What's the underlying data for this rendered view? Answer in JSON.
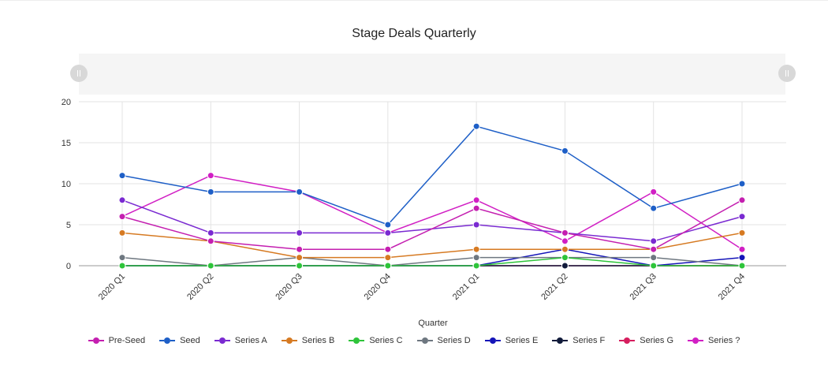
{
  "chart_data": {
    "type": "line",
    "title": "Stage Deals Quarterly",
    "xlabel": "Quarter",
    "ylabel": "",
    "ylim": [
      0,
      20
    ],
    "yticks": [
      0,
      5,
      10,
      15,
      20
    ],
    "categories": [
      "2020 Q1",
      "2020 Q2",
      "2020 Q3",
      "2020 Q4",
      "2021 Q1",
      "2021 Q2",
      "2021 Q3",
      "2021 Q4"
    ],
    "grid": true,
    "legend_position": "bottom",
    "series": [
      {
        "name": "Pre-Seed",
        "color": "#c41fb0",
        "values": [
          6,
          3,
          2,
          2,
          7,
          4,
          2,
          8
        ]
      },
      {
        "name": "Seed",
        "color": "#1e5fc7",
        "values": [
          11,
          9,
          9,
          5,
          17,
          14,
          7,
          10
        ]
      },
      {
        "name": "Series A",
        "color": "#7a2ad1",
        "values": [
          8,
          4,
          4,
          4,
          5,
          4,
          3,
          6
        ]
      },
      {
        "name": "Series B",
        "color": "#d67a22",
        "values": [
          4,
          3,
          1,
          1,
          2,
          2,
          2,
          4
        ]
      },
      {
        "name": "Series C",
        "color": "#2ec43a",
        "values": [
          0,
          0,
          0,
          0,
          0,
          1,
          0,
          0
        ]
      },
      {
        "name": "Series D",
        "color": "#6e7780",
        "values": [
          1,
          0,
          1,
          0,
          1,
          1,
          1,
          0
        ]
      },
      {
        "name": "Series E",
        "color": "#1414b8",
        "values": [
          0,
          0,
          0,
          0,
          0,
          2,
          0,
          1
        ]
      },
      {
        "name": "Series F",
        "color": "#101a3a",
        "values": [
          0,
          0,
          0,
          0,
          0,
          0,
          0,
          0
        ]
      },
      {
        "name": "Series G",
        "color": "#d61e5e",
        "values": [
          0,
          0,
          0,
          0,
          0,
          0,
          0,
          0
        ]
      },
      {
        "name": "Series ?",
        "color": "#d11fc4",
        "values": [
          6,
          11,
          9,
          4,
          8,
          3,
          9,
          2
        ]
      }
    ]
  }
}
